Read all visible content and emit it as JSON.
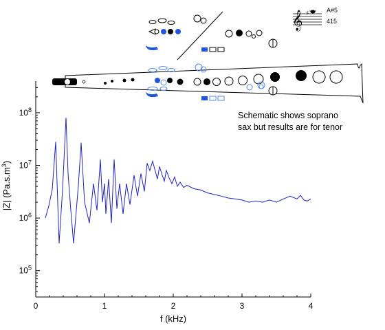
{
  "chart_data": {
    "type": "line",
    "title": "",
    "xlabel": "f (kHz)",
    "ylabel": "|Z| (Pa.s.m3)",
    "ylabel_parts": {
      "main": "|Z| (Pa.s.m",
      "sup": "3",
      "close": ")"
    },
    "xlim": [
      0,
      4
    ],
    "ylim_log10": [
      4.5,
      8.6
    ],
    "y_scale": "log",
    "grid": false,
    "x_ticks": [
      0,
      1,
      2,
      3,
      4
    ],
    "x_tick_labels": [
      "0",
      "1",
      "2",
      "3",
      "4"
    ],
    "y_ticks": [
      {
        "value": 100000,
        "base": "10",
        "exp": "5"
      },
      {
        "value": 1000000,
        "base": "10",
        "exp": "6"
      },
      {
        "value": 10000000,
        "base": "10",
        "exp": "7"
      },
      {
        "value": 100000000,
        "base": "10",
        "exp": "8"
      }
    ],
    "line_color": "#2222bb",
    "series": [
      {
        "x": [
          0.14,
          0.19,
          0.24,
          0.29,
          0.34,
          0.39,
          0.44,
          0.47,
          0.51,
          0.55,
          0.62,
          0.66,
          0.71,
          0.78,
          0.84,
          0.89,
          0.94,
          0.97,
          1.0,
          1.02,
          1.06,
          1.1,
          1.14,
          1.18,
          1.22,
          1.27,
          1.32,
          1.37,
          1.43,
          1.48,
          1.53,
          1.58,
          1.62,
          1.66,
          1.7,
          1.73,
          1.77,
          1.8,
          1.84,
          1.87,
          1.9,
          1.94,
          1.98,
          2.02,
          2.06,
          2.1,
          2.15,
          2.2,
          2.3,
          2.4,
          2.5,
          2.6,
          2.7,
          2.8,
          2.9,
          3.0,
          3.1,
          3.2,
          3.3,
          3.4,
          3.5,
          3.6,
          3.7,
          3.8,
          3.85,
          3.9,
          3.95,
          4.0
        ],
        "y": [
          1000000,
          1700000,
          3500000,
          28000000,
          330000,
          3500000,
          80000000,
          7000000,
          1400000,
          330000,
          4200000,
          27000000,
          2000000,
          800000,
          4500000,
          1400000,
          13000000,
          2000000,
          4500000,
          1200000,
          5500000,
          800000,
          13000000,
          1500000,
          4500000,
          1200000,
          4500000,
          1800000,
          6500000,
          2600000,
          7000000,
          3200000,
          11000000,
          8000000,
          12000000,
          8500000,
          5500000,
          9500000,
          6500000,
          5000000,
          8000000,
          5800000,
          4500000,
          6000000,
          4000000,
          4800000,
          3800000,
          4200000,
          3600000,
          3400000,
          3000000,
          2800000,
          2600000,
          2400000,
          2300000,
          2200000,
          2000000,
          2100000,
          2000000,
          2200000,
          2000000,
          2300000,
          2600000,
          2300000,
          2700000,
          2200000,
          2100000,
          2300000
        ]
      }
    ]
  },
  "annotation": {
    "lines": [
      "Schematic shows soprano",
      "sax but results are for tenor"
    ]
  },
  "fingering_key": {
    "note": "A#5",
    "frequency": "415"
  },
  "colors": {
    "key_closed": "#000000",
    "key_blue": "#2255dd",
    "key_outline_blue": "#5588ee",
    "line": "#2222bb"
  }
}
